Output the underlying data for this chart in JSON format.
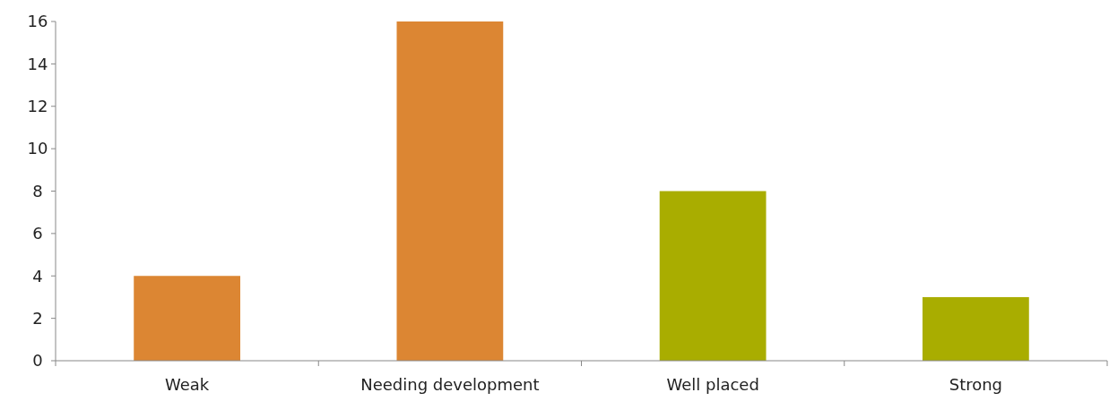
{
  "chart_data": {
    "type": "bar",
    "categories": [
      "Weak",
      "Needing development",
      "Well placed",
      "Strong"
    ],
    "values": [
      4,
      16,
      8,
      3
    ],
    "colors": [
      "#dc8633",
      "#dc8633",
      "#a9ad00",
      "#a9ad00"
    ],
    "ylim": [
      0,
      16
    ],
    "yticks": [
      0,
      2,
      4,
      6,
      8,
      10,
      12,
      14,
      16
    ],
    "grid": false
  }
}
